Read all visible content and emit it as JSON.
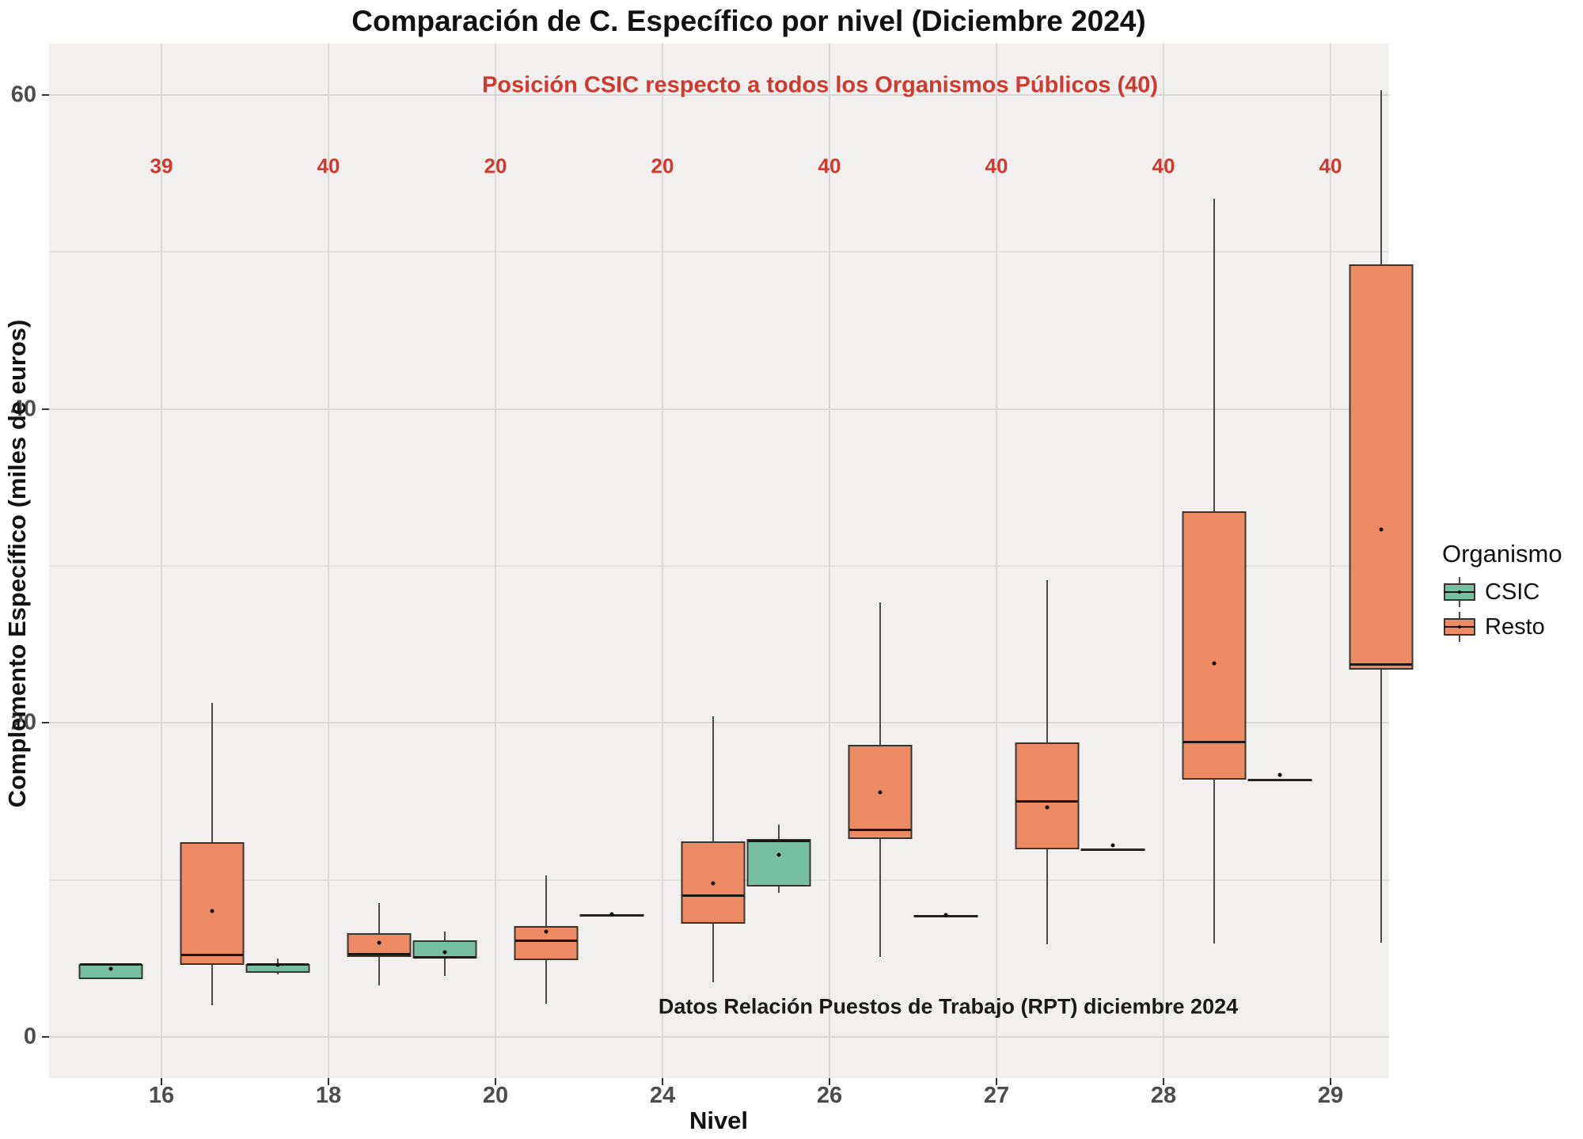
{
  "title": "Comparación de C. Específico por nivel (Diciembre 2024)",
  "subtitle": "Posición CSIC respecto a todos los Organismos Públicos (40)",
  "annotation": "Datos Relación Puestos de Trabajo (RPT) diciembre 2024",
  "x_axis": {
    "label": "Nivel"
  },
  "y_axis": {
    "label": "Complemento Específico (miles de euros)",
    "ticks": [
      0,
      20,
      40,
      60
    ],
    "minor_step": 10,
    "range": [
      -2.5,
      63.5
    ]
  },
  "legend": {
    "title": "Organismo",
    "position": "right",
    "items": [
      {
        "label": "CSIC",
        "color": "#76BFA2"
      },
      {
        "label": "Resto",
        "color": "#EC8B63"
      }
    ]
  },
  "colors": {
    "csic_fill": "#76BFA2",
    "resto_fill": "#EC8B63",
    "red_text": "#CE3A30",
    "panel_bg": "#F1F0EE",
    "box_border": "#3a342e"
  },
  "chart_data": {
    "type": "boxplot",
    "series": [
      "CSIC",
      "Resto"
    ],
    "title": "Comparación de C. Específico por nivel (Diciembre 2024)",
    "xlabel": "Nivel",
    "ylabel": "Complemento Específico (miles de euros)",
    "ylim": [
      -2.5,
      63.5
    ],
    "grid": {
      "major": 20,
      "minor": 10
    },
    "position_labels_header": "Posición CSIC respecto a todos los Organismos Públicos (40)",
    "groups": [
      {
        "nivel": "16",
        "posicion_csic": "39",
        "CSIC": {
          "lo": 3.7,
          "q1": 3.7,
          "median": 4.6,
          "q3": 4.65,
          "hi": 4.65,
          "mean": 4.35
        },
        "Resto": {
          "lo": 2.0,
          "q1": 4.6,
          "median": 5.2,
          "q3": 12.4,
          "hi": 21.3,
          "mean": 8.0
        }
      },
      {
        "nivel": "18",
        "posicion_csic": "40",
        "CSIC": {
          "lo": 4.0,
          "q1": 4.1,
          "median": 4.6,
          "q3": 4.65,
          "hi": 5.0,
          "mean": 4.6
        },
        "Resto": {
          "lo": 3.3,
          "q1": 5.1,
          "median": 5.25,
          "q3": 6.6,
          "hi": 8.5,
          "mean": 6.0
        }
      },
      {
        "nivel": "20",
        "posicion_csic": "20",
        "CSIC": {
          "lo": 3.9,
          "q1": 5.0,
          "median": 5.05,
          "q3": 6.15,
          "hi": 6.7,
          "mean": 5.4
        },
        "Resto": {
          "lo": 2.1,
          "q1": 4.9,
          "median": 6.15,
          "q3": 7.05,
          "hi": 10.3,
          "mean": 6.7
        }
      },
      {
        "nivel": "24",
        "posicion_csic": "20",
        "CSIC": {
          "lo": 7.75,
          "q1": 7.75,
          "median": 7.75,
          "q3": 7.75,
          "hi": 7.75,
          "mean": 7.8
        },
        "Resto": {
          "lo": 3.5,
          "q1": 7.2,
          "median": 9.0,
          "q3": 12.45,
          "hi": 20.4,
          "mean": 9.8
        }
      },
      {
        "nivel": "26",
        "posicion_csic": "40",
        "CSIC": {
          "lo": 9.2,
          "q1": 9.6,
          "median": 12.5,
          "q3": 12.6,
          "hi": 13.5,
          "mean": 11.6
        },
        "Resto": {
          "lo": 5.1,
          "q1": 12.6,
          "median": 13.2,
          "q3": 18.6,
          "hi": 27.7,
          "mean": 15.6
        }
      },
      {
        "nivel": "27",
        "posicion_csic": "40",
        "CSIC": {
          "lo": 7.7,
          "q1": 7.7,
          "median": 7.7,
          "q3": 7.7,
          "hi": 7.7,
          "mean": 7.75
        },
        "Resto": {
          "lo": 5.9,
          "q1": 11.95,
          "median": 15.0,
          "q3": 18.75,
          "hi": 29.1,
          "mean": 14.6
        }
      },
      {
        "nivel": "28",
        "posicion_csic": "40",
        "CSIC": {
          "lo": 11.9,
          "q1": 11.9,
          "median": 11.9,
          "q3": 11.9,
          "hi": 11.9,
          "mean": 12.2
        },
        "Resto": {
          "lo": 5.95,
          "q1": 16.4,
          "median": 18.8,
          "q3": 33.5,
          "hi": 53.4,
          "mean": 23.8
        }
      },
      {
        "nivel": "29",
        "posicion_csic": "40",
        "CSIC": {
          "lo": 16.35,
          "q1": 16.35,
          "median": 16.35,
          "q3": 16.35,
          "hi": 16.35,
          "mean": 16.7
        },
        "Resto": {
          "lo": 6.0,
          "q1": 23.4,
          "median": 23.7,
          "q3": 49.2,
          "hi": 60.3,
          "mean": 32.3
        }
      }
    ]
  }
}
